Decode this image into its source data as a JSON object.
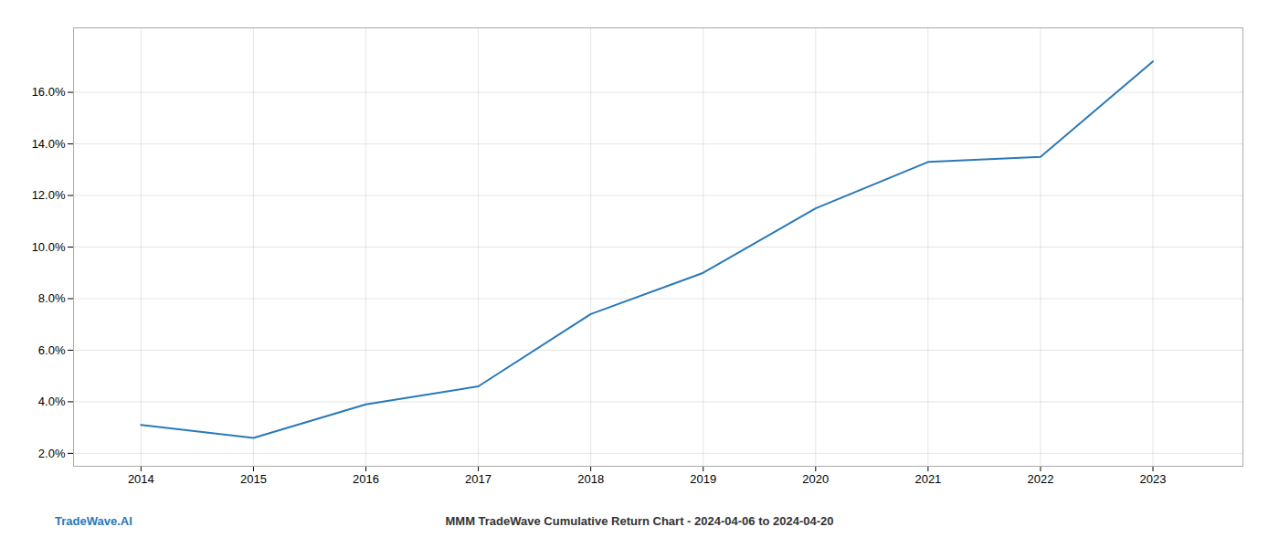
{
  "chart_data": {
    "type": "line",
    "title": "MMM TradeWave Cumulative Return Chart - 2024-04-06 to 2024-04-20",
    "annotations": [
      "TradeWave.AI"
    ],
    "x": [
      2014,
      2015,
      2016,
      2017,
      2018,
      2019,
      2020,
      2021,
      2022,
      2023
    ],
    "values": [
      3.1,
      2.6,
      3.9,
      4.6,
      7.4,
      9.0,
      11.5,
      13.3,
      13.5,
      17.2
    ],
    "color": "#2979b8",
    "xlim": [
      2013.4,
      2023.8
    ],
    "xticks": [
      2014,
      2015,
      2016,
      2017,
      2018,
      2019,
      2020,
      2021,
      2022,
      2023
    ],
    "ylim": [
      1.5,
      18.5
    ],
    "yticks": [
      {
        "value": 2.0,
        "label": "2.0%"
      },
      {
        "value": 4.0,
        "label": "4.0%"
      },
      {
        "value": 6.0,
        "label": "6.0%"
      },
      {
        "value": 8.0,
        "label": "8.0%"
      },
      {
        "value": 10.0,
        "label": "10.0%"
      },
      {
        "value": 12.0,
        "label": "12.0%"
      },
      {
        "value": 14.0,
        "label": "14.0%"
      },
      {
        "value": 16.0,
        "label": "16.0%"
      }
    ],
    "grid": true
  }
}
